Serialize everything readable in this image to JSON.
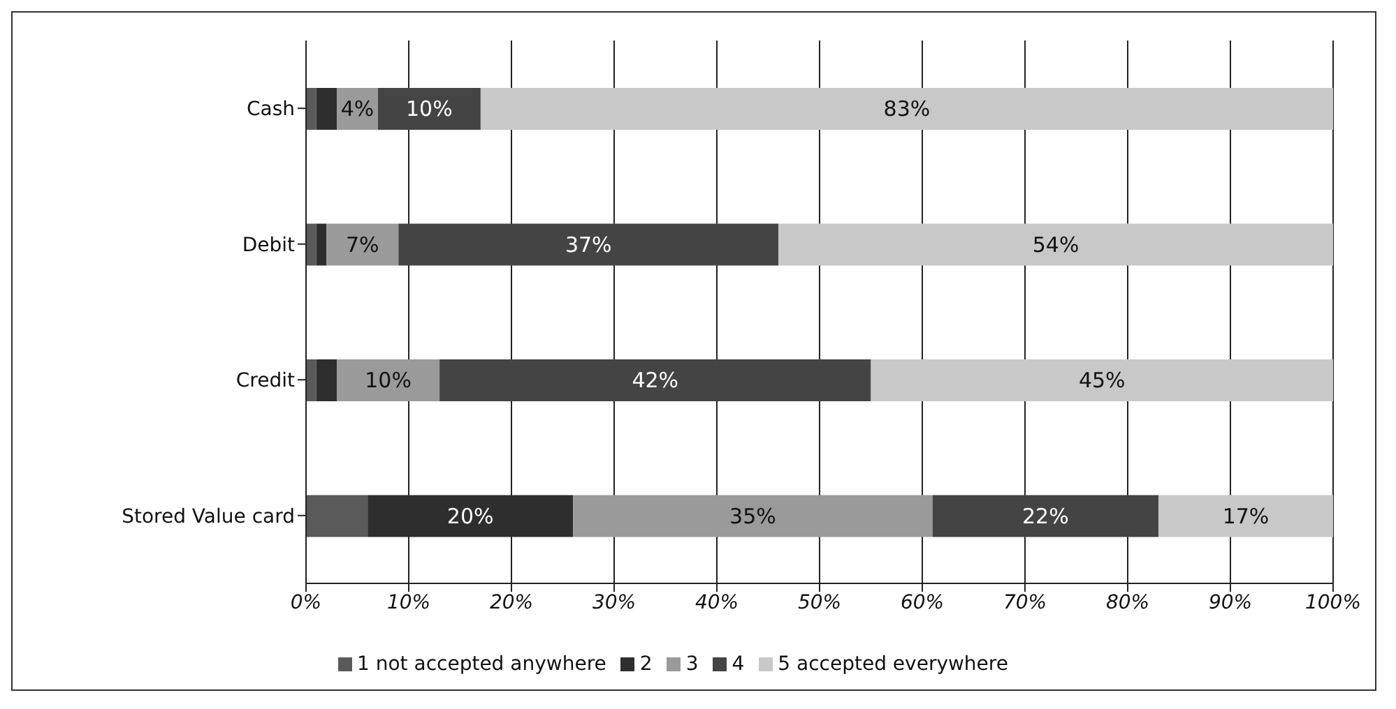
{
  "chart_data": {
    "type": "bar",
    "orientation": "horizontal",
    "stacked": true,
    "categories": [
      "Cash",
      "Debit",
      "Credit",
      "Stored Value card"
    ],
    "series": [
      {
        "name": "1 not accepted anywhere",
        "color": "#5a5a5a",
        "values": [
          1,
          1,
          1,
          6
        ],
        "value_labels": [
          null,
          null,
          null,
          null
        ]
      },
      {
        "name": "2",
        "color": "#2e2e2e",
        "values": [
          2,
          1,
          2,
          20
        ],
        "value_labels": [
          null,
          null,
          null,
          "20%"
        ]
      },
      {
        "name": "3",
        "color": "#9a9a9a",
        "values": [
          4,
          7,
          10,
          35
        ],
        "value_labels": [
          "4%",
          "7%",
          "10%",
          "35%"
        ]
      },
      {
        "name": "4",
        "color": "#444444",
        "values": [
          10,
          37,
          42,
          22
        ],
        "value_labels": [
          "10%",
          "37%",
          "42%",
          "22%"
        ]
      },
      {
        "name": "5 accepted everywhere",
        "color": "#c8c8c8",
        "values": [
          83,
          54,
          45,
          17
        ],
        "value_labels": [
          "83%",
          "54%",
          "45%",
          "17%"
        ]
      }
    ],
    "xlim": [
      0,
      100
    ],
    "xticks": [
      {
        "value": 0,
        "label": "0%"
      },
      {
        "value": 10,
        "label": "10%"
      },
      {
        "value": 20,
        "label": "20%"
      },
      {
        "value": 30,
        "label": "30%"
      },
      {
        "value": 40,
        "label": "40%"
      },
      {
        "value": 50,
        "label": "50%"
      },
      {
        "value": 60,
        "label": "60%"
      },
      {
        "value": 70,
        "label": "70%"
      },
      {
        "value": 80,
        "label": "80%"
      },
      {
        "value": 90,
        "label": "90%"
      },
      {
        "value": 100,
        "label": "100%"
      }
    ],
    "grid": "x",
    "legend": "bottom"
  }
}
